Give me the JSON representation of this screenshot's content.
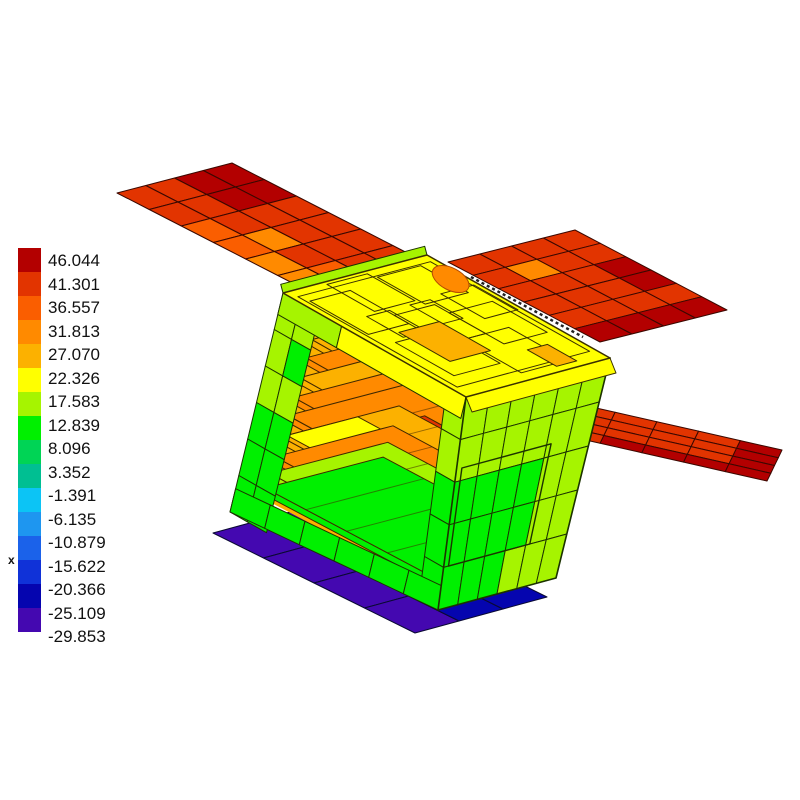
{
  "window": {
    "background": "#ffffff"
  },
  "legend": {
    "position": "left",
    "labels": [
      "46.044",
      "41.301",
      "36.557",
      "31.813",
      "27.070",
      "22.326",
      "17.583",
      "12.839",
      "8.096",
      "3.352",
      "-1.391",
      "-6.135",
      "-10.879",
      "-15.622",
      "-20.366",
      "-25.109",
      "-29.853"
    ],
    "band_colors": [
      "#b30000",
      "#e23400",
      "#fa5e00",
      "#ff8a00",
      "#fcb100",
      "#ffff00",
      "#a6f400",
      "#00f000",
      "#00d455",
      "#00bf92",
      "#0cc4f5",
      "#1e96f0",
      "#1b62ea",
      "#1032d8",
      "#0505af",
      "#4408b0"
    ],
    "axis_marker": "x"
  },
  "chart_data": {
    "type": "heatmap",
    "title": "",
    "subject": "3D finite-element thermal contour plot of a small satellite (CubeSat) with deployed solar arrays and a bottom radiator panel",
    "legend_values": [
      46.044,
      41.301,
      36.557,
      31.813,
      27.07,
      22.326,
      17.583,
      12.839,
      8.096,
      3.352,
      -1.391,
      -6.135,
      -10.879,
      -15.622,
      -20.366,
      -25.109,
      -29.853
    ],
    "legend_colors": [
      "#b30000",
      "#e23400",
      "#fa5e00",
      "#ff8a00",
      "#fcb100",
      "#ffff00",
      "#a6f400",
      "#00f000",
      "#00d455",
      "#00bf92",
      "#0cc4f5",
      "#1e96f0",
      "#1b62ea",
      "#1032d8",
      "#0505af",
      "#4408b0"
    ],
    "legend_position": "left",
    "regions": [
      {
        "part": "left solar array wing",
        "approx_range": [
          31.8,
          46.0
        ]
      },
      {
        "part": "upper right solar array wing",
        "approx_range": [
          31.8,
          46.0
        ]
      },
      {
        "part": "lower right solar array wing",
        "approx_range": [
          31.8,
          46.0
        ]
      },
      {
        "part": "bus top face",
        "approx_range": [
          17.6,
          31.8
        ]
      },
      {
        "part": "bus frame and right face",
        "approx_range": [
          8.1,
          17.6
        ]
      },
      {
        "part": "internal electronics boards",
        "approx_range": [
          22.3,
          41.3
        ]
      },
      {
        "part": "bottom radiator panel",
        "approx_range": [
          -29.9,
          -20.4
        ]
      }
    ]
  },
  "model": {
    "meshes": {
      "left_wing": {
        "rows": 4,
        "cols": 6,
        "cells": [
          [
            1,
            1,
            2,
            2,
            2,
            2
          ],
          [
            1,
            1,
            2,
            2,
            2,
            2
          ],
          [
            2,
            2,
            2,
            4,
            2,
            3
          ],
          [
            2,
            2,
            3,
            3,
            4,
            4
          ]
        ]
      },
      "upper_right_wing": {
        "rows": 4,
        "cols": 6,
        "cells": [
          [
            2,
            2,
            1,
            1,
            2,
            1
          ],
          [
            2,
            2,
            2,
            2,
            2,
            1
          ],
          [
            2,
            4,
            2,
            2,
            2,
            1
          ],
          [
            2,
            2,
            2,
            2,
            2,
            1
          ]
        ]
      },
      "lower_right_wing": {
        "rows": 4,
        "cols": 7,
        "cells": [
          [
            2,
            4,
            2,
            2,
            2,
            2,
            1
          ],
          [
            2,
            2,
            2,
            2,
            2,
            2,
            1
          ],
          [
            2,
            2,
            2,
            2,
            2,
            2,
            1
          ],
          [
            2,
            2,
            2,
            1,
            1,
            1,
            1
          ]
        ]
      },
      "right_face": {
        "rows": 5,
        "cols": 6,
        "cells": [
          [
            7,
            7,
            7,
            7,
            7,
            7
          ],
          [
            7,
            7,
            7,
            7,
            7,
            7
          ],
          [
            8,
            8,
            8,
            8,
            7,
            7
          ],
          [
            8,
            8,
            8,
            8,
            7,
            7
          ],
          [
            8,
            8,
            8,
            7,
            7,
            7
          ]
        ]
      },
      "bottom_panel": {
        "rows": 4,
        "cols": 3,
        "cells": [
          [
            16,
            16,
            15
          ],
          [
            16,
            16,
            15
          ],
          [
            16,
            15,
            15
          ],
          [
            16,
            15,
            15
          ]
        ]
      }
    },
    "interior_boards": [
      {
        "s": 0.04,
        "band": 5
      },
      {
        "s": 0.15,
        "band": 4
      },
      {
        "s": 0.27,
        "band": 5
      },
      {
        "s": 0.39,
        "band": 4
      },
      {
        "s": 0.5,
        "band": 4,
        "hot": true
      },
      {
        "s": 0.63,
        "band": 5,
        "accent_band": 6
      },
      {
        "s": 0.75,
        "band": 4
      },
      {
        "s": 0.85,
        "band": 7
      },
      {
        "s": 0.94,
        "band": 8
      }
    ],
    "frame": {
      "left_outer": [
        7,
        7,
        7,
        8,
        8,
        8
      ],
      "left_inner": [
        7,
        8,
        7,
        8,
        8,
        8
      ],
      "top_bar": [
        7,
        6
      ],
      "right_col": [
        7,
        7,
        8,
        8,
        8
      ],
      "bottom_bar": 8
    },
    "top_face": {
      "base_band": 6,
      "patch_band": 5,
      "ellipse_band": 4
    },
    "interior_rod_band": 13,
    "hot_bands": [
      2,
      3
    ]
  }
}
